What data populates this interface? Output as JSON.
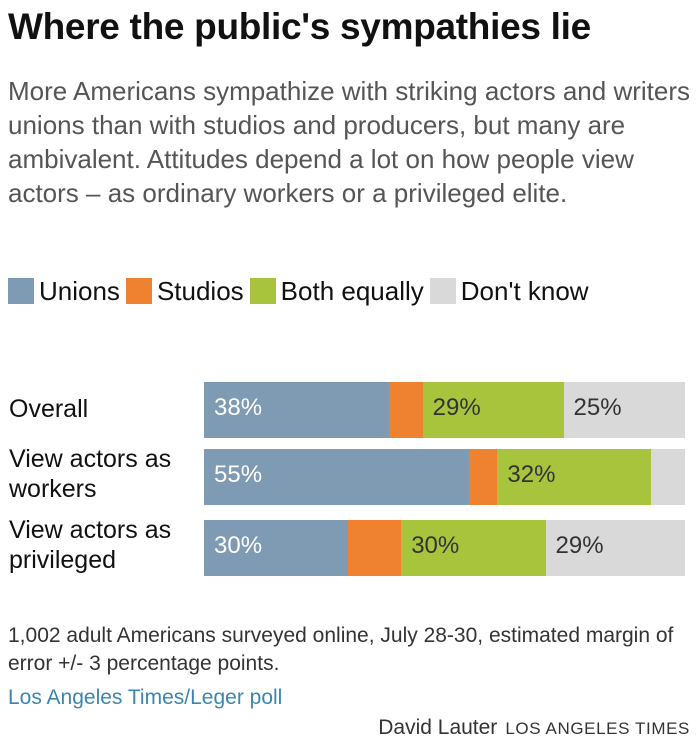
{
  "title": "Where the public's sympathies lie",
  "subtitle": "More Americans sympathize with striking actors and writers unions than with studios and producers, but many are ambivalent. Attitudes depend a lot on how people view actors – as ordinary workers or a privileged elite.",
  "colors": {
    "unions": "#7f9bb3",
    "studios": "#ee8230",
    "both": "#a8c43c",
    "dont_know": "#d9d9d9",
    "label_light": "#ffffff",
    "label_dark": "#333333"
  },
  "chart_data": {
    "type": "bar",
    "orientation": "horizontal",
    "stacked": true,
    "categories": [
      "Overall",
      "View actors as workers",
      "View actors as privileged"
    ],
    "series": [
      {
        "name": "Unions",
        "values": [
          38,
          55,
          30
        ]
      },
      {
        "name": "Studios",
        "values": [
          7,
          6,
          11
        ]
      },
      {
        "name": "Both equally",
        "values": [
          29,
          32,
          30
        ]
      },
      {
        "name": "Don't know",
        "values": [
          25,
          7,
          29
        ]
      }
    ],
    "data_labels": [
      [
        "38%",
        "",
        "29%",
        "25%"
      ],
      [
        "55%",
        "",
        "32%",
        ""
      ],
      [
        "30%",
        "",
        "30%",
        "29%"
      ]
    ],
    "xlim": [
      0,
      100
    ],
    "legend_position": "top",
    "grid": false
  },
  "rows": [
    {
      "label_lines": [
        "Overall"
      ]
    },
    {
      "label_lines": [
        "View actors as",
        "workers"
      ]
    },
    {
      "label_lines": [
        "View actors as",
        "privileged"
      ]
    }
  ],
  "note": "1,002 adult Americans surveyed online, July 28-30, estimated margin of error +/- 3 percentage points.",
  "source": "Los Angeles Times/Leger poll",
  "credit": {
    "author": "David Lauter",
    "org": "LOS ANGELES TIMES"
  }
}
